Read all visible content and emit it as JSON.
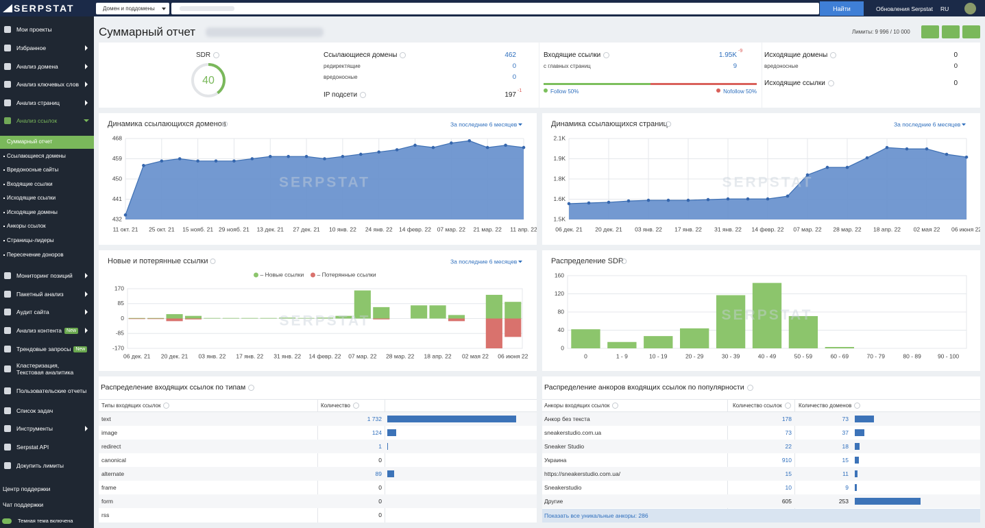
{
  "watermark": "SERPSTAT",
  "sidebar": {
    "logo": "SERPSTAT",
    "menu": [
      {
        "label": "Мои проекты"
      },
      {
        "label": "Избранное",
        "expandable": true
      },
      {
        "label": "Анализ домена",
        "expandable": true
      },
      {
        "label": "Анализ ключевых слов",
        "expandable": true
      },
      {
        "label": "Анализ страниц",
        "expandable": true
      },
      {
        "label": "Анализ ссылок",
        "expandable": true,
        "active": true
      }
    ],
    "submenu": [
      {
        "label": "Суммарный отчет",
        "active": true
      },
      {
        "label": "Ссылающиеся домены"
      },
      {
        "label": "Вредоносные сайты"
      },
      {
        "label": "Входящие ссылки"
      },
      {
        "label": "Исходящие ссылки"
      },
      {
        "label": "Исходящие домены"
      },
      {
        "label": "Анкоры ссылок"
      },
      {
        "label": "Страницы-лидеры"
      },
      {
        "label": "Пересечение доноров"
      }
    ],
    "menu_more": [
      {
        "label": "Мониторинг позиций",
        "expandable": true
      },
      {
        "label": "Пакетный анализ",
        "expandable": true
      },
      {
        "label": "Аудит сайта",
        "expandable": true
      },
      {
        "label": "Анализ контента",
        "badge": "New",
        "expandable": true
      },
      {
        "label": "Трендовые запросы",
        "badge": "New"
      },
      {
        "label": "Кластеризация, Текстовая аналитика"
      },
      {
        "label": "Пользовательские отчеты"
      },
      {
        "label": "Список задач"
      },
      {
        "label": "Инструменты",
        "expandable": true
      },
      {
        "label": "Serpstat API"
      },
      {
        "label": "Докупить лимиты"
      }
    ],
    "footer": [
      "Центр поддержки",
      "Чат поддержки",
      "Темная тема включена"
    ]
  },
  "topbar": {
    "search_type": "Домен и поддомены",
    "search_button": "Найти",
    "updates": "Обновления Serpstat",
    "language": "RU"
  },
  "header": {
    "title": "Суммарный отчет",
    "limits": "Лимиты: 9 996 / 10 000"
  },
  "summary": {
    "sdr": {
      "label": "SDR",
      "value": 40,
      "lim": [
        0,
        100
      ]
    },
    "referring_domains": {
      "label": "Ссылающиеся домены",
      "value": 462,
      "rows": [
        {
          "label": "редиректящие",
          "value": 0
        },
        {
          "label": "вредоносные",
          "value": 0
        }
      ]
    },
    "ip_subnets": {
      "label": "IP подсети",
      "value": 197,
      "change": -1
    },
    "backlinks": {
      "label": "Входящие ссылки",
      "value": 1950,
      "value_label": "1.95K",
      "change": -9,
      "rows": [
        {
          "label": "с главных страниц",
          "value": 9
        }
      ],
      "follow": {
        "label": "Follow 50%",
        "value": 50,
        "color": "#7cbf5c"
      },
      "nofollow": {
        "label": "Nofollow 50%",
        "value": 50,
        "color": "#d9605a"
      }
    },
    "outgoing_domains": {
      "label": "Исходящие домены",
      "value": 0,
      "rows": [
        {
          "label": "вредоносные",
          "value": 0
        }
      ]
    },
    "outgoing_links": {
      "label": "Исходящие ссылки",
      "value": 0
    }
  },
  "charts": [
    {
      "type": "area",
      "title": "Динамика ссылающихся доменов",
      "period": "За последние 6 месяцев",
      "color": "#6b94cf",
      "categories": [
        "11 окт. 21",
        null,
        "25 окт. 21",
        null,
        "15 нояб. 21",
        null,
        "29 нояб. 21",
        null,
        "13 дек. 21",
        null,
        "27 дек. 21",
        null,
        "10 янв. 22",
        null,
        "24 янв. 22",
        null,
        "14 февр. 22",
        null,
        "07 мар. 22",
        null,
        "21 мар. 22",
        null,
        "11 апр. 22"
      ],
      "values": [
        434,
        456,
        458,
        459,
        458,
        458,
        458,
        459,
        460,
        460,
        460,
        459,
        460,
        461,
        462,
        463,
        465,
        464,
        466,
        467,
        464,
        465,
        464
      ],
      "ylim": [
        432,
        468
      ],
      "yticks": [
        432,
        441,
        450,
        459,
        468
      ]
    },
    {
      "type": "area",
      "title": "Динамика ссылающихся страниц",
      "period": "За последние 6 месяцев",
      "color": "#6b94cf",
      "categories": [
        "06 дек. 21",
        null,
        "20 дек. 21",
        null,
        "03 янв. 22",
        null,
        "17 янв. 22",
        null,
        "31 янв. 22",
        null,
        "14 февр. 22",
        null,
        "07 мар. 22",
        null,
        "28 мар. 22",
        null,
        "18 апр. 22",
        null,
        "02 мая 22",
        null,
        "06 июня 22"
      ],
      "values": [
        1617,
        1622,
        1627,
        1637,
        1642,
        1642,
        1642,
        1647,
        1652,
        1652,
        1652,
        1673,
        1830,
        1886,
        1886,
        1957,
        2033,
        2023,
        2023,
        1983,
        1962
      ],
      "ylim": [
        1500,
        2100
      ],
      "yticks": [
        {
          "value": 1500,
          "label": "1.5K"
        },
        {
          "value": 1650,
          "label": "1.6K"
        },
        {
          "value": 1800,
          "label": "1.8K"
        },
        {
          "value": 1950,
          "label": "1.9K"
        },
        {
          "value": 2100,
          "label": "2.1K"
        }
      ]
    },
    {
      "type": "bar",
      "title": "Новые и потерянные ссылки",
      "period": "За последние 6 месяцев",
      "categories": [
        "06 дек. 21",
        null,
        "20 дек. 21",
        null,
        "03 янв. 22",
        null,
        "17 янв. 22",
        null,
        "31 янв. 22",
        null,
        "14 февр. 22",
        null,
        "07 мар. 22",
        null,
        "28 мар. 22",
        null,
        "18 апр. 22",
        null,
        "02 мая 22",
        null,
        "06 июня 22"
      ],
      "series": [
        {
          "name": "– Новые ссылки",
          "color": "#8cc56c",
          "values": [
            3,
            3,
            25,
            15,
            3,
            3,
            3,
            3,
            5,
            3,
            5,
            15,
            160,
            65,
            0,
            75,
            75,
            20,
            0,
            135,
            95
          ]
        },
        {
          "name": "– Потерянные ссылки",
          "color": "#d9726d",
          "values": [
            -3,
            -3,
            -15,
            -5,
            0,
            0,
            0,
            0,
            0,
            0,
            0,
            0,
            0,
            -5,
            0,
            0,
            0,
            -15,
            0,
            -170,
            -105
          ]
        }
      ],
      "ylim": [
        -170,
        170
      ],
      "yticks": [
        170,
        85,
        0,
        -85,
        -170
      ]
    },
    {
      "type": "bar",
      "title": "Распределение SDR",
      "color": "#8cc56c",
      "categories": [
        "0",
        "1 - 9",
        "10 - 19",
        "20 - 29",
        "30 - 39",
        "40 - 49",
        "50 - 59",
        "60 - 69",
        "70 - 79",
        "80 - 89",
        "90 - 100"
      ],
      "values": [
        42,
        14,
        27,
        44,
        117,
        144,
        71,
        3,
        0,
        0,
        0
      ],
      "ylim": [
        0,
        160
      ],
      "yticks": [
        0,
        40,
        80,
        120,
        160
      ]
    }
  ],
  "tables": [
    {
      "title": "Распределение входящих ссылок по типам",
      "columns": [
        "Типы входящих ссылок",
        "Количество"
      ],
      "bar_color": "#3c73b8",
      "rows": [
        {
          "name": "text",
          "value": 1732,
          "label": "1 732"
        },
        {
          "name": "image",
          "value": 124
        },
        {
          "name": "redirect",
          "value": 1
        },
        {
          "name": "canonical",
          "value": 0
        },
        {
          "name": "alternate",
          "value": 89
        },
        {
          "name": "frame",
          "value": 0
        },
        {
          "name": "form",
          "value": 0
        },
        {
          "name": "rss",
          "value": 0
        }
      ]
    },
    {
      "title": "Распределение анкоров входящих ссылок по популярности",
      "columns": [
        "Анкоры входящих ссылок",
        "Количество ссылок",
        "Количество доменов"
      ],
      "bar_color": "#3c73b8",
      "rows": [
        {
          "anchor": "Анкор без текста",
          "links": 178,
          "domains": 73
        },
        {
          "anchor": "sneakerstudio.com.ua",
          "links": 73,
          "domains": 37
        },
        {
          "anchor": "Sneaker Studio",
          "links": 22,
          "domains": 18
        },
        {
          "anchor": "Украина",
          "links": 910,
          "domains": 15
        },
        {
          "anchor": "https://sneakerstudio.com.ua/",
          "links": 15,
          "domains": 11
        },
        {
          "anchor": "Sneakerstudio",
          "links": 10,
          "domains": 9
        },
        {
          "anchor": "Другие",
          "links": 605,
          "domains": 253,
          "plain": true
        }
      ],
      "footer": "Показать все уникальные анкоры: 286"
    }
  ]
}
